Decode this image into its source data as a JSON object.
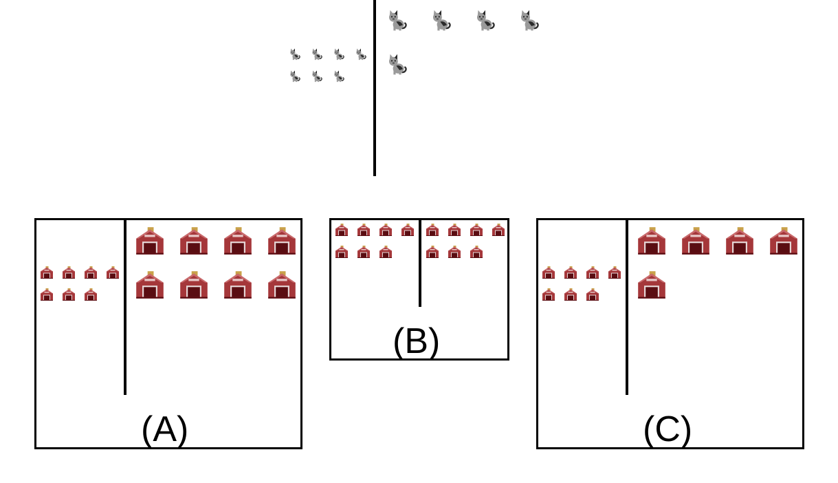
{
  "question": {
    "left_count": 7,
    "right_count": 5,
    "icon": "cat-icon"
  },
  "options": [
    {
      "label": "(A)",
      "left_count": 7,
      "right_count": 8,
      "icon": "barn-icon"
    },
    {
      "label": "(B)",
      "left_count": 7,
      "right_count": 7,
      "icon": "barn-icon"
    },
    {
      "label": "(C)",
      "left_count": 7,
      "right_count": 5,
      "icon": "barn-icon"
    }
  ],
  "colors": {
    "barn_red": "#a5373a",
    "barn_roof": "#c96a6c",
    "barn_door": "#5a0d12",
    "barn_cupola": "#c9a24a",
    "cat_gray": "#9a9a9a",
    "cat_dark": "#2b2b2b"
  }
}
